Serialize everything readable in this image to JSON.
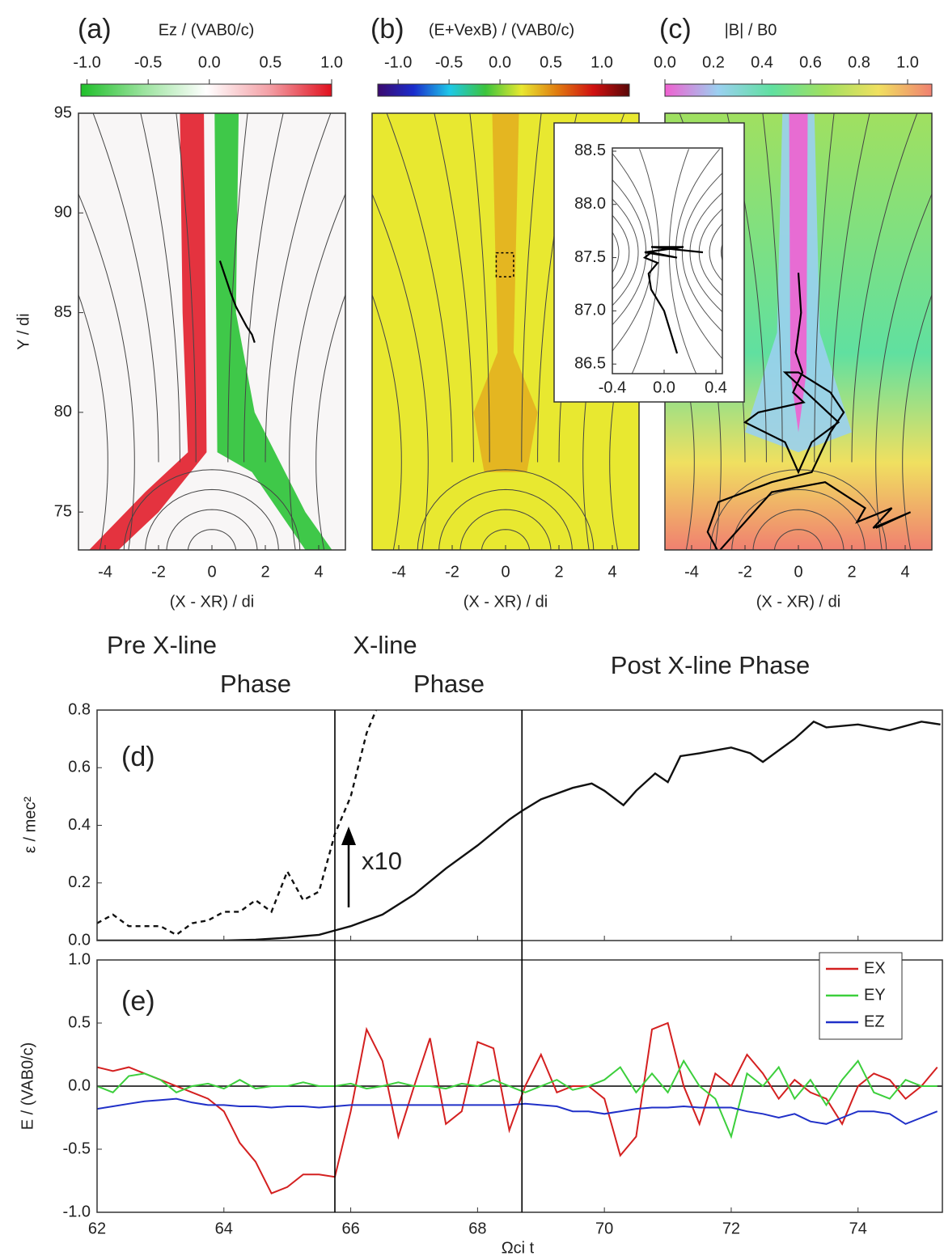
{
  "chart_data": [
    {
      "type": "field-map",
      "title": "(a)",
      "colorbar": {
        "label": "Ez / (VAB0/c)",
        "lim": [
          -1.05,
          1.0
        ],
        "ticks": [
          {
            "value": -1,
            "label": "-1.0"
          },
          {
            "value": -0.5,
            "label": "-0.5"
          },
          {
            "value": 0,
            "label": "0.0"
          },
          {
            "value": 0.5,
            "label": "0.5"
          },
          {
            "value": 1,
            "label": "1.0"
          }
        ],
        "colors": [
          "#1fbf2a",
          "#9be39e",
          "#ffffff",
          "#f3a0a6",
          "#e0101e"
        ]
      },
      "xlim": [
        -5,
        5
      ],
      "ylim": [
        73.1,
        95
      ],
      "xticks": [
        -4,
        -2,
        0,
        2,
        4
      ],
      "yticks": [
        75,
        80,
        85,
        90,
        95
      ],
      "xlabel": "(X - XR) / di",
      "ylabel": "Y / di",
      "trajectory": {
        "x": [
          0.3,
          0.5,
          0.7,
          0.9,
          1.1,
          1.3,
          1.5,
          1.6
        ],
        "y": [
          87.6,
          86.8,
          86.0,
          85.3,
          84.8,
          84.3,
          83.9,
          83.5
        ]
      }
    },
    {
      "type": "field-map",
      "title": "(b)",
      "colorbar": {
        "label": "(E+VexB) / (VAB0/c)",
        "lim": [
          -1.2,
          1.27
        ],
        "ticks": [
          {
            "value": -1,
            "label": "-1.0"
          },
          {
            "value": -0.5,
            "label": "-0.5"
          },
          {
            "value": 0,
            "label": "0.0"
          },
          {
            "value": 0.5,
            "label": "0.5"
          },
          {
            "value": 1,
            "label": "1.0"
          }
        ],
        "colors": [
          "#3b0a6e",
          "#1a2ccc",
          "#1ec8e8",
          "#3cc43c",
          "#e8e830",
          "#e07a10",
          "#d01010",
          "#5a0808"
        ]
      },
      "xlim": [
        -5,
        5
      ],
      "ylim": [
        73.1,
        95
      ],
      "xticks": [
        -4,
        -2,
        0,
        2,
        4
      ],
      "xlabel": "(X - XR) / di"
    },
    {
      "type": "field-map",
      "title": "(c)",
      "colorbar": {
        "label": "|B| / B0",
        "lim": [
          0,
          1.1
        ],
        "ticks": [
          {
            "value": 0,
            "label": "0.0"
          },
          0.2,
          0.4,
          0.6,
          0.8,
          {
            "value": 1,
            "label": "1.0"
          }
        ],
        "colors": [
          "#f060d0",
          "#9ad0f0",
          "#60e0a0",
          "#a0e060",
          "#f0e060",
          "#f08070"
        ]
      },
      "xlim": [
        -5,
        5
      ],
      "ylim": [
        73.1,
        95
      ],
      "xticks": [
        -4,
        -2,
        0,
        2,
        4
      ],
      "xlabel": "(X - XR) / di",
      "trajectory": {
        "x": [
          0,
          0.1,
          -0.1,
          0.15,
          -0.2,
          0.2,
          -1.5,
          -2,
          -0.5,
          0,
          0.5,
          1.5,
          -0.5,
          0,
          1.2,
          1.7,
          1.2,
          0.5,
          -1,
          -3,
          -3.4,
          -3,
          -1,
          1,
          2.5,
          2.2,
          3.5,
          2.8,
          4.2,
          2.9
        ],
        "y": [
          87,
          85,
          83,
          82,
          81,
          80.5,
          80,
          79.5,
          78.5,
          77,
          78.5,
          79.5,
          82,
          82,
          81,
          80,
          79,
          77,
          76.5,
          75.5,
          74,
          73,
          76,
          76.5,
          75.2,
          74.5,
          75.2,
          74.2,
          75,
          74.2
        ]
      }
    },
    {
      "type": "inset",
      "xlim": [
        -0.4,
        0.45
      ],
      "ylim": [
        86.41,
        88.53
      ],
      "xticks": [
        -0.4,
        {
          "value": 0,
          "label": "0.0"
        },
        0.4
      ],
      "yticks": [
        {
          "value": 86.5,
          "label": "86.5"
        },
        {
          "value": 87,
          "label": "87.0"
        },
        {
          "value": 87.5,
          "label": "87.5"
        },
        {
          "value": 88,
          "label": "88.0"
        },
        {
          "value": 88.5,
          "label": "88.5"
        }
      ],
      "trajectory": {
        "x": [
          0.1,
          0.05,
          0.0,
          -0.1,
          -0.12,
          -0.05,
          -0.15,
          -0.1,
          0.1,
          -0.15,
          0.15,
          -0.1,
          0.3
        ],
        "y": [
          86.6,
          86.8,
          87.0,
          87.2,
          87.35,
          87.45,
          87.5,
          87.55,
          87.5,
          87.55,
          87.6,
          87.6,
          87.55
        ]
      }
    },
    {
      "type": "line",
      "title": "(d)",
      "ylabel": "ε / mec²",
      "phase_labels": [
        "Pre X-line",
        "Phase",
        "X-line",
        "Phase",
        "Post X-line Phase"
      ],
      "annotation": "x10",
      "vlines": [
        65.75,
        68.7
      ],
      "xlim": [
        62,
        75.33
      ],
      "ylim": [
        0,
        0.8
      ],
      "yticks": [
        {
          "value": 0,
          "label": "0.0"
        },
        0.2,
        0.4,
        0.6,
        0.8
      ],
      "series": [
        {
          "color": "#111111",
          "style": "solid",
          "x": [
            62,
            63,
            64,
            64.5,
            65,
            65.5,
            65.75,
            66,
            66.5,
            67,
            67.5,
            68,
            68.5,
            68.7,
            69,
            69.5,
            69.8,
            70,
            70.3,
            70.5,
            70.8,
            71,
            71.2,
            71.5,
            72,
            72.3,
            72.5,
            73,
            73.3,
            73.5,
            74,
            74.5,
            75,
            75.3
          ],
          "values": [
            0,
            0,
            0,
            0.003,
            0.01,
            0.02,
            0.035,
            0.05,
            0.09,
            0.16,
            0.25,
            0.33,
            0.42,
            0.45,
            0.49,
            0.53,
            0.545,
            0.52,
            0.47,
            0.52,
            0.58,
            0.55,
            0.64,
            0.65,
            0.67,
            0.65,
            0.62,
            0.7,
            0.76,
            0.74,
            0.75,
            0.73,
            0.76,
            0.75
          ]
        },
        {
          "color": "#111111",
          "style": "dashed",
          "x": [
            62,
            62.25,
            62.5,
            62.75,
            63,
            63.25,
            63.5,
            63.75,
            64,
            64.25,
            64.5,
            64.75,
            65,
            65.25,
            65.5,
            65.75,
            66,
            66.25,
            66.4
          ],
          "values": [
            0.06,
            0.09,
            0.05,
            0.05,
            0.05,
            0.02,
            0.06,
            0.07,
            0.1,
            0.1,
            0.14,
            0.1,
            0.24,
            0.14,
            0.17,
            0.37,
            0.5,
            0.72,
            0.8
          ]
        }
      ]
    },
    {
      "type": "line",
      "title": "(e)",
      "ylabel": "E / (VAB0/c)",
      "xlabel": "Ωci t",
      "legend": "upper right",
      "xlim": [
        62,
        75.33
      ],
      "ylim": [
        -1,
        1
      ],
      "xticks": [
        62,
        64,
        66,
        68,
        70,
        72,
        74
      ],
      "yticks": [
        {
          "value": -1,
          "label": "-1.0"
        },
        {
          "value": -0.5,
          "label": "-0.5"
        },
        {
          "value": 0,
          "label": "0.0"
        },
        0.5,
        {
          "value": 1,
          "label": "1.0"
        }
      ],
      "x": [
        62,
        62.25,
        62.5,
        62.75,
        63,
        63.25,
        63.5,
        63.75,
        64,
        64.25,
        64.5,
        64.75,
        65,
        65.25,
        65.5,
        65.75,
        66,
        66.25,
        66.5,
        66.75,
        67,
        67.25,
        67.5,
        67.75,
        68,
        68.25,
        68.5,
        68.75,
        69,
        69.25,
        69.5,
        69.75,
        70,
        70.25,
        70.5,
        70.75,
        71,
        71.25,
        71.5,
        71.75,
        72,
        72.25,
        72.5,
        72.75,
        73,
        73.25,
        73.5,
        73.75,
        74,
        74.25,
        74.5,
        74.75,
        75,
        75.25
      ],
      "series": [
        {
          "name": "EX",
          "color": "#d42020",
          "values": [
            0.15,
            0.12,
            0.15,
            0.1,
            0.05,
            0.0,
            -0.05,
            -0.1,
            -0.2,
            -0.45,
            -0.6,
            -0.85,
            -0.8,
            -0.7,
            -0.7,
            -0.72,
            -0.2,
            0.45,
            0.2,
            -0.4,
            0.0,
            0.38,
            -0.3,
            -0.2,
            0.35,
            0.3,
            -0.35,
            0.0,
            0.25,
            -0.05,
            0.0,
            0.0,
            -0.1,
            -0.55,
            -0.4,
            0.45,
            0.5,
            0.0,
            -0.3,
            0.1,
            0.0,
            0.25,
            0.1,
            -0.1,
            0.05,
            -0.05,
            -0.1,
            -0.3,
            0.0,
            0.1,
            0.05,
            -0.1,
            0.0,
            0.15
          ]
        },
        {
          "name": "EY",
          "color": "#3ccf3c",
          "values": [
            0.0,
            -0.05,
            0.08,
            0.1,
            0.05,
            -0.05,
            0.0,
            0.02,
            -0.02,
            0.05,
            -0.02,
            0.0,
            0.0,
            0.03,
            0.0,
            0.0,
            0.02,
            -0.02,
            0.0,
            0.03,
            0.0,
            0.0,
            -0.02,
            0.02,
            0.0,
            0.05,
            0.0,
            -0.05,
            0.0,
            0.05,
            -0.03,
            0.0,
            0.05,
            0.15,
            -0.05,
            0.1,
            -0.05,
            0.2,
            0.0,
            -0.1,
            -0.4,
            0.1,
            0.0,
            0.15,
            -0.1,
            0.05,
            -0.15,
            0.05,
            0.2,
            -0.05,
            -0.1,
            0.05,
            0.0,
            0.0
          ]
        },
        {
          "name": "EZ",
          "color": "#2030c8",
          "values": [
            -0.18,
            -0.16,
            -0.14,
            -0.12,
            -0.11,
            -0.1,
            -0.13,
            -0.15,
            -0.15,
            -0.16,
            -0.16,
            -0.17,
            -0.16,
            -0.16,
            -0.17,
            -0.16,
            -0.15,
            -0.15,
            -0.15,
            -0.15,
            -0.15,
            -0.15,
            -0.15,
            -0.15,
            -0.15,
            -0.15,
            -0.15,
            -0.14,
            -0.15,
            -0.16,
            -0.2,
            -0.2,
            -0.22,
            -0.2,
            -0.18,
            -0.17,
            -0.17,
            -0.16,
            -0.17,
            -0.17,
            -0.17,
            -0.2,
            -0.22,
            -0.25,
            -0.22,
            -0.28,
            -0.3,
            -0.25,
            -0.2,
            -0.2,
            -0.22,
            -0.3,
            -0.25,
            -0.2
          ]
        }
      ]
    }
  ]
}
